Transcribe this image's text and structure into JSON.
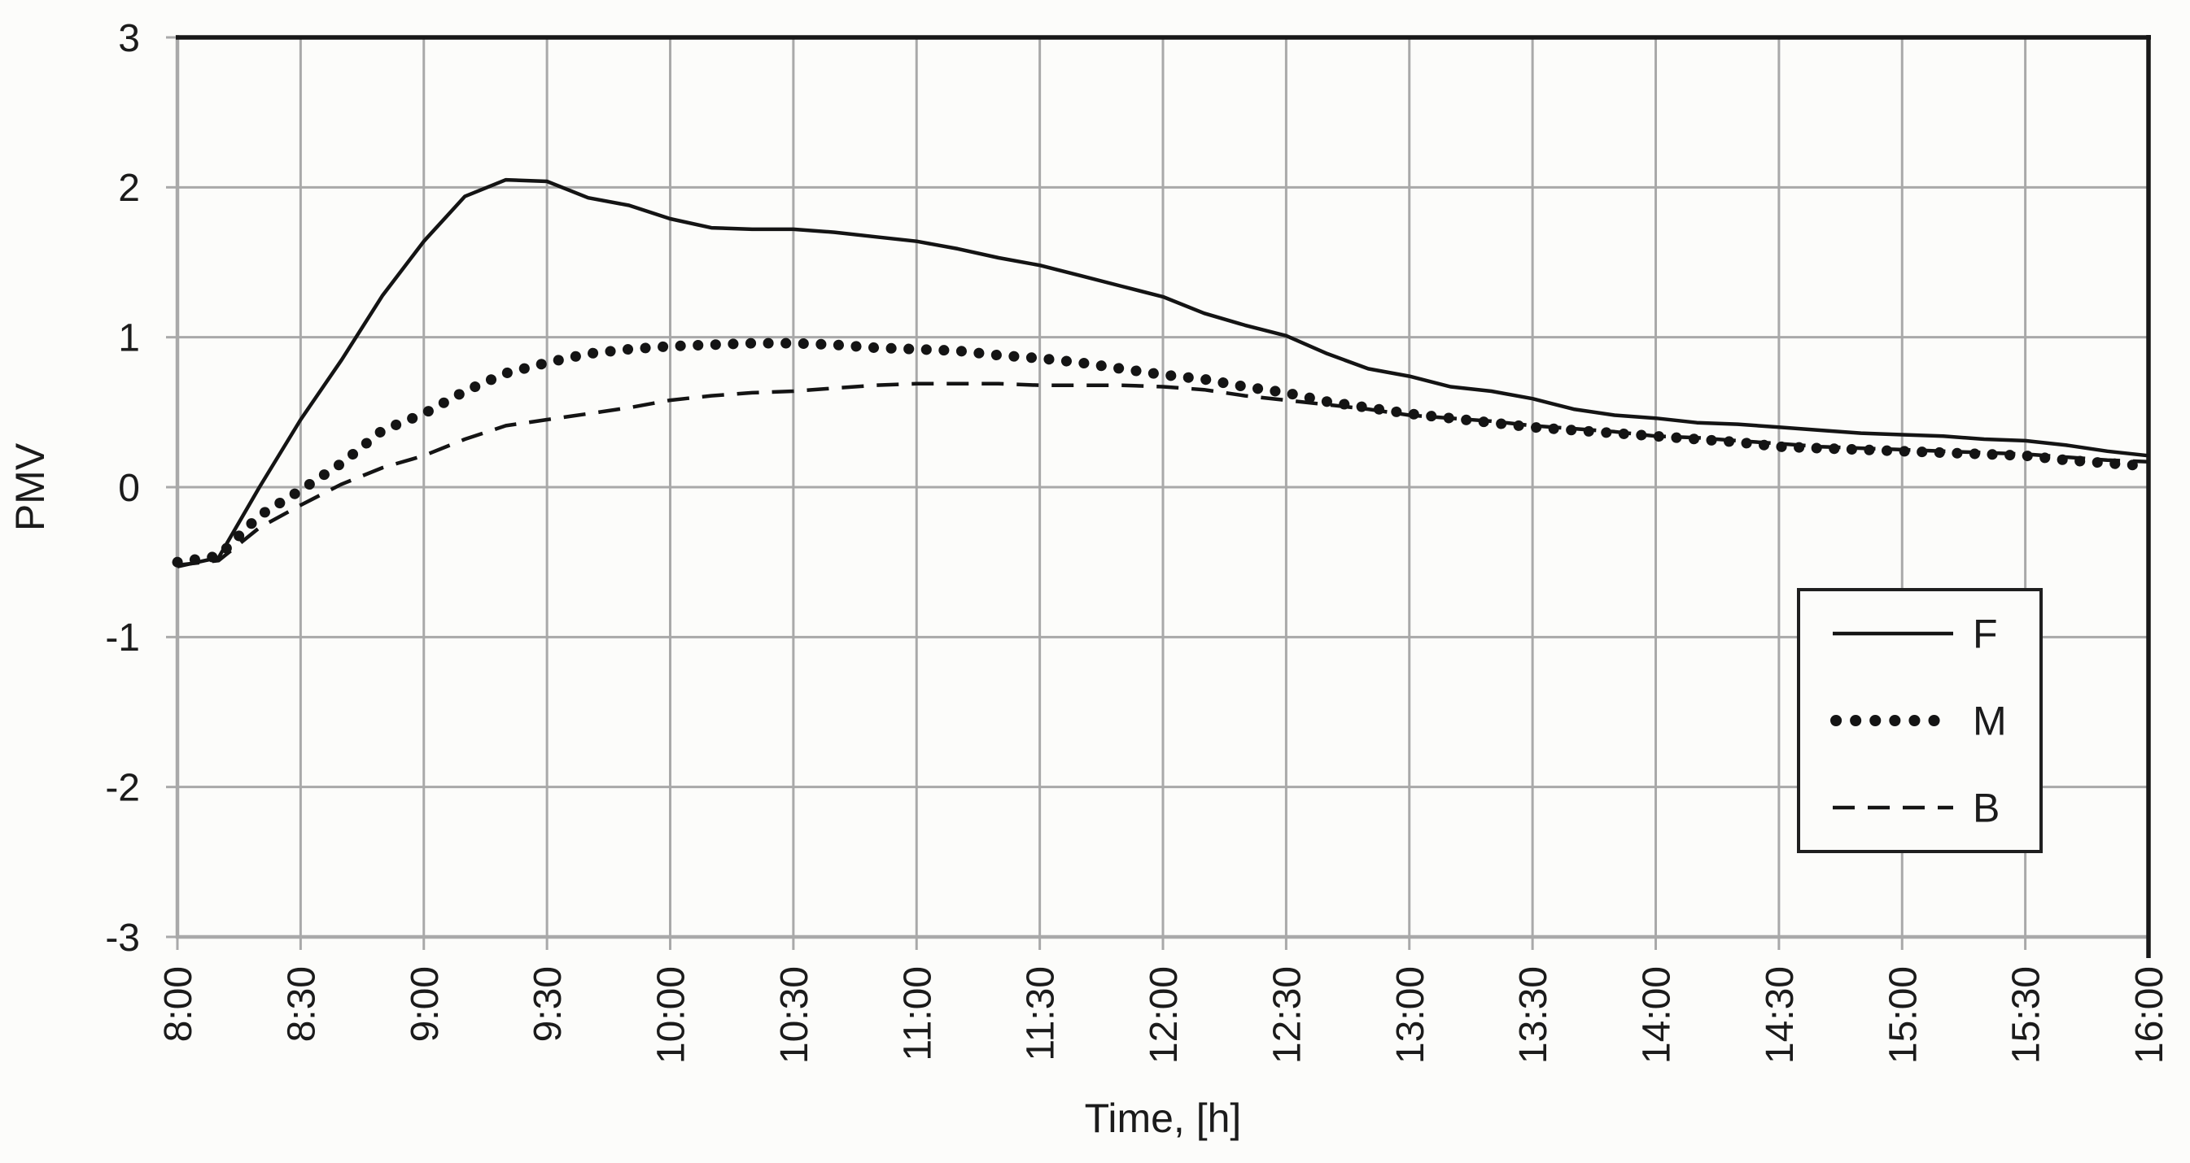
{
  "colors": {
    "background": "#fcfcfa",
    "line": "#141414",
    "grid": "#a9a9a9",
    "text": "#1b1b1b"
  },
  "legend": {
    "items": [
      {
        "label": "F",
        "style": "solid"
      },
      {
        "label": "M",
        "style": "dotted"
      },
      {
        "label": "B",
        "style": "dashed"
      }
    ]
  },
  "chart_data": {
    "type": "line",
    "title": "",
    "xlabel": "Time, [h]",
    "ylabel": "PMV",
    "grid": true,
    "legend_position": "inside-right",
    "ylim": [
      -3,
      3
    ],
    "y_ticks": [
      3,
      2,
      1,
      0,
      -1,
      -2,
      -3
    ],
    "y_tick_labels": [
      "3",
      "2",
      "1",
      "0",
      "-1",
      "-2",
      "-3"
    ],
    "x_range_hours": [
      8,
      16
    ],
    "x_tick_labels": [
      "8:00",
      "8:30",
      "9:00",
      "9:30",
      "10:00",
      "10:30",
      "11:00",
      "11:30",
      "12:00",
      "12:30",
      "13:00",
      "13:30",
      "14:00",
      "14:30",
      "15:00",
      "15:30",
      "16:00"
    ],
    "x_hours": [
      8,
      8.167,
      8.333,
      8.5,
      8.667,
      8.833,
      9,
      9.167,
      9.333,
      9.5,
      9.667,
      9.833,
      10,
      10.167,
      10.333,
      10.5,
      10.667,
      10.833,
      11,
      11.167,
      11.333,
      11.5,
      11.667,
      11.833,
      12,
      12.167,
      12.333,
      12.5,
      12.667,
      12.833,
      13,
      13.167,
      13.333,
      13.5,
      13.667,
      13.833,
      14,
      14.167,
      14.333,
      14.5,
      14.667,
      14.833,
      15,
      15.167,
      15.333,
      15.5,
      15.667,
      15.833,
      16
    ],
    "series": [
      {
        "name": "F",
        "style": "solid",
        "values": [
          -0.53,
          -0.47,
          0.0,
          0.45,
          0.85,
          1.28,
          1.64,
          1.94,
          2.05,
          2.04,
          1.93,
          1.88,
          1.79,
          1.73,
          1.72,
          1.72,
          1.7,
          1.67,
          1.64,
          1.59,
          1.53,
          1.48,
          1.41,
          1.34,
          1.27,
          1.16,
          1.08,
          1.01,
          0.89,
          0.79,
          0.74,
          0.67,
          0.64,
          0.59,
          0.52,
          0.48,
          0.46,
          0.43,
          0.42,
          0.4,
          0.38,
          0.36,
          0.35,
          0.34,
          0.32,
          0.31,
          0.28,
          0.24,
          0.21
        ]
      },
      {
        "name": "M",
        "style": "dotted",
        "values": [
          -0.5,
          -0.46,
          -0.19,
          -0.02,
          0.16,
          0.38,
          0.49,
          0.64,
          0.76,
          0.83,
          0.89,
          0.92,
          0.94,
          0.95,
          0.96,
          0.96,
          0.95,
          0.93,
          0.92,
          0.91,
          0.88,
          0.86,
          0.83,
          0.79,
          0.75,
          0.72,
          0.67,
          0.63,
          0.57,
          0.53,
          0.49,
          0.46,
          0.43,
          0.4,
          0.38,
          0.36,
          0.34,
          0.32,
          0.3,
          0.27,
          0.26,
          0.25,
          0.24,
          0.23,
          0.22,
          0.21,
          0.18,
          0.16,
          0.14
        ]
      },
      {
        "name": "B",
        "style": "dashed",
        "values": [
          -0.52,
          -0.49,
          -0.27,
          -0.12,
          0.02,
          0.13,
          0.21,
          0.32,
          0.41,
          0.45,
          0.49,
          0.53,
          0.58,
          0.61,
          0.63,
          0.64,
          0.66,
          0.68,
          0.69,
          0.69,
          0.69,
          0.68,
          0.68,
          0.68,
          0.67,
          0.65,
          0.61,
          0.58,
          0.55,
          0.52,
          0.48,
          0.46,
          0.44,
          0.41,
          0.39,
          0.37,
          0.34,
          0.33,
          0.31,
          0.29,
          0.27,
          0.26,
          0.25,
          0.24,
          0.23,
          0.22,
          0.2,
          0.18,
          0.17
        ]
      }
    ]
  }
}
